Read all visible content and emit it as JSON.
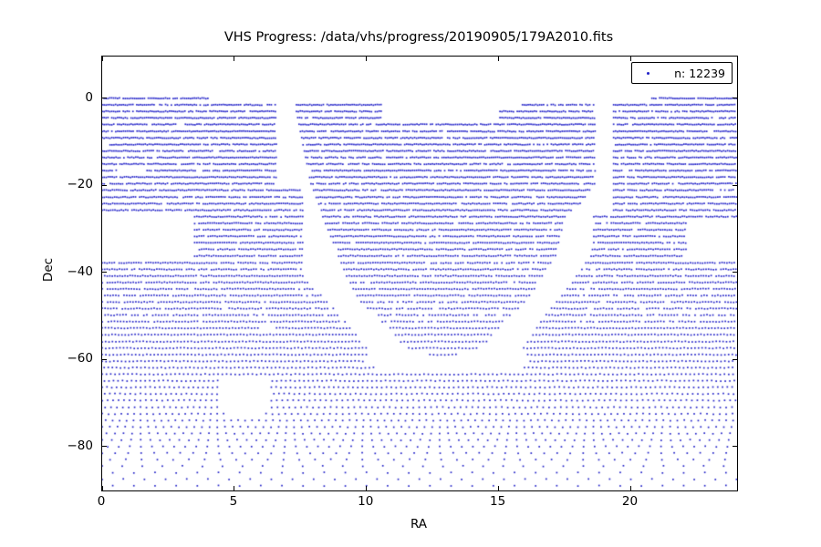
{
  "title": "VHS Progress: /data/vhs/progress/20190905/179A2010.fits",
  "legend": {
    "label": "n: 12239",
    "count": 12239
  },
  "axes": {
    "xlabel": "RA",
    "ylabel": "Dec",
    "xticks": [
      {
        "value": 0,
        "label": "0"
      },
      {
        "value": 5,
        "label": "5"
      },
      {
        "value": 10,
        "label": "10"
      },
      {
        "value": 15,
        "label": "15"
      },
      {
        "value": 20,
        "label": "20"
      }
    ],
    "yticks": [
      {
        "value": 0,
        "label": "0"
      },
      {
        "value": -20,
        "label": "−20"
      },
      {
        "value": -40,
        "label": "−40"
      },
      {
        "value": -60,
        "label": "−60"
      },
      {
        "value": -80,
        "label": "−80"
      }
    ]
  },
  "colors": {
    "point": "#2222c8",
    "frame": "#000000",
    "background": "#ffffff"
  },
  "chart_data": {
    "type": "scatter",
    "title": "VHS Progress: /data/vhs/progress/20190905/179A2010.fits",
    "xlabel": "RA",
    "ylabel": "Dec",
    "xlim": [
      0,
      24.02
    ],
    "ylim": [
      -90.1,
      9.6
    ],
    "grid": false,
    "legend_position": "upper right",
    "legend_entries": [
      "n: 12239"
    ],
    "n_points": 12239,
    "marker": "point",
    "point_color": "#2222c8",
    "row_spacing_deg": 1.51,
    "ra_step_base": 0.0727,
    "ra_step_max": 0.8,
    "stagger_from_row": 40,
    "rows": [
      {
        "dec": 0.0,
        "ra_segments": [
          [
            0,
            4.05
          ],
          [
            20.8,
            24
          ]
        ]
      },
      {
        "dec": -1.5,
        "ra_segments": [
          [
            0,
            6.6
          ],
          [
            7.35,
            10.6
          ],
          [
            15.9,
            18.65
          ],
          [
            19.35,
            24
          ]
        ]
      },
      {
        "dec": -3.0,
        "ra_segments": [
          [
            0,
            6.6
          ],
          [
            7.35,
            10.6
          ],
          [
            15.05,
            18.65
          ],
          [
            19.35,
            24
          ]
        ]
      },
      {
        "dec": -4.5,
        "ra_segments": [
          [
            0,
            6.6
          ],
          [
            7.4,
            10.6
          ],
          [
            15.05,
            18.65
          ],
          [
            19.35,
            24
          ]
        ]
      },
      {
        "dec": -6.0,
        "ra_segments": [
          [
            0,
            2.85
          ],
          [
            3.15,
            6.6
          ],
          [
            7.45,
            18.65
          ],
          [
            19.35,
            24
          ]
        ]
      },
      {
        "dec": -7.6,
        "ra_segments": [
          [
            0,
            6.6
          ],
          [
            7.5,
            18.65
          ],
          [
            19.35,
            24
          ]
        ]
      },
      {
        "dec": -9.1,
        "ra_segments": [
          [
            0,
            6.6
          ],
          [
            7.55,
            18.65
          ],
          [
            19.35,
            24
          ]
        ]
      },
      {
        "dec": -10.6,
        "ra_segments": [
          [
            0.3,
            6.6
          ],
          [
            7.6,
            18.65
          ],
          [
            19.35,
            24
          ]
        ]
      },
      {
        "dec": -12.1,
        "ra_segments": [
          [
            0,
            6.6
          ],
          [
            7.65,
            18.65
          ],
          [
            19.35,
            24
          ]
        ]
      },
      {
        "dec": -13.6,
        "ra_segments": [
          [
            0,
            6.6
          ],
          [
            7.7,
            18.65
          ],
          [
            19.35,
            24
          ]
        ]
      },
      {
        "dec": -15.1,
        "ra_segments": [
          [
            0,
            6.6
          ],
          [
            7.75,
            18.65
          ],
          [
            19.35,
            24
          ]
        ]
      },
      {
        "dec": -16.6,
        "ra_segments": [
          [
            0,
            0.6
          ],
          [
            1.7,
            6.6
          ],
          [
            7.8,
            18.65
          ],
          [
            19.35,
            24
          ]
        ]
      },
      {
        "dec": -18.1,
        "ra_segments": [
          [
            0,
            6.6
          ],
          [
            7.85,
            18.65
          ],
          [
            19.35,
            24
          ]
        ]
      },
      {
        "dec": -19.6,
        "ra_segments": [
          [
            0,
            6.6
          ],
          [
            7.9,
            18.65
          ],
          [
            19.35,
            24
          ]
        ]
      },
      {
        "dec": -21.1,
        "ra_segments": [
          [
            0,
            7.6
          ],
          [
            8.0,
            18.5
          ],
          [
            19.35,
            24
          ]
        ]
      },
      {
        "dec": -22.7,
        "ra_segments": [
          [
            0,
            7.6
          ],
          [
            8.1,
            18.3
          ],
          [
            19.35,
            24
          ]
        ]
      },
      {
        "dec": -24.2,
        "ra_segments": [
          [
            0,
            7.6
          ],
          [
            8.2,
            18.1
          ],
          [
            19.35,
            24
          ]
        ]
      },
      {
        "dec": -25.7,
        "ra_segments": [
          [
            0,
            7.6
          ],
          [
            8.3,
            17.8
          ],
          [
            19.35,
            24
          ]
        ]
      },
      {
        "dec": -27.2,
        "ra_segments": [
          [
            3.5,
            7.6
          ],
          [
            8.35,
            17.55
          ],
          [
            18.6,
            24
          ]
        ]
      },
      {
        "dec": -28.7,
        "ra_segments": [
          [
            3.5,
            7.6
          ],
          [
            8.45,
            17.45
          ],
          [
            18.6,
            22.1
          ]
        ]
      },
      {
        "dec": -30.2,
        "ra_segments": [
          [
            3.5,
            7.6
          ],
          [
            8.55,
            17.4
          ],
          [
            18.6,
            22.1
          ]
        ]
      },
      {
        "dec": -31.7,
        "ra_segments": [
          [
            3.5,
            7.6
          ],
          [
            8.65,
            17.35
          ],
          [
            18.6,
            22.1
          ]
        ]
      },
      {
        "dec": -33.2,
        "ra_segments": [
          [
            3.5,
            7.6
          ],
          [
            8.75,
            17.3
          ],
          [
            18.6,
            22.1
          ]
        ]
      },
      {
        "dec": -34.7,
        "ra_segments": [
          [
            3.5,
            7.6
          ],
          [
            8.85,
            17.2
          ],
          [
            18.55,
            22.1
          ]
        ]
      },
      {
        "dec": -36.2,
        "ra_segments": [
          [
            3.5,
            7.6
          ],
          [
            8.95,
            17.15
          ],
          [
            18.5,
            22.1
          ]
        ]
      },
      {
        "dec": -37.8,
        "ra_segments": [
          [
            0,
            7.6
          ],
          [
            9.05,
            17.0
          ],
          [
            18.3,
            24
          ]
        ]
      },
      {
        "dec": -39.3,
        "ra_segments": [
          [
            0,
            7.6
          ],
          [
            9.15,
            16.85
          ],
          [
            18.15,
            24
          ]
        ]
      },
      {
        "dec": -40.8,
        "ra_segments": [
          [
            0,
            7.7
          ],
          [
            9.25,
            16.7
          ],
          [
            17.95,
            24
          ]
        ]
      },
      {
        "dec": -42.3,
        "ra_segments": [
          [
            0,
            7.8
          ],
          [
            9.4,
            16.55
          ],
          [
            17.8,
            24
          ]
        ]
      },
      {
        "dec": -43.8,
        "ra_segments": [
          [
            0,
            8.0
          ],
          [
            9.5,
            16.4
          ],
          [
            17.6,
            24
          ]
        ]
      },
      {
        "dec": -45.3,
        "ra_segments": [
          [
            0,
            8.3
          ],
          [
            9.65,
            16.2
          ],
          [
            17.4,
            24
          ]
        ]
      },
      {
        "dec": -46.8,
        "ra_segments": [
          [
            0,
            8.6
          ],
          [
            9.8,
            16.0
          ],
          [
            17.2,
            24
          ]
        ]
      },
      {
        "dec": -48.3,
        "ra_segments": [
          [
            0,
            8.8
          ],
          [
            10.05,
            15.75
          ],
          [
            17.0,
            24
          ]
        ]
      },
      {
        "dec": -49.8,
        "ra_segments": [
          [
            0,
            9.0
          ],
          [
            10.35,
            15.5
          ],
          [
            16.8,
            24
          ]
        ]
      },
      {
        "dec": -51.3,
        "ra_segments": [
          [
            0,
            9.2
          ],
          [
            10.6,
            15.25
          ],
          [
            16.6,
            24
          ]
        ]
      },
      {
        "dec": -52.8,
        "ra_segments": [
          [
            0,
            6.0
          ],
          [
            6.6,
            9.4
          ],
          [
            10.9,
            15.0
          ],
          [
            16.45,
            24
          ]
        ]
      },
      {
        "dec": -54.3,
        "ra_segments": [
          [
            0,
            9.6
          ],
          [
            11.1,
            14.8
          ],
          [
            16.3,
            24
          ]
        ]
      },
      {
        "dec": -55.9,
        "ra_segments": [
          [
            0,
            9.8
          ],
          [
            11.3,
            14.6
          ],
          [
            16.1,
            24
          ]
        ]
      },
      {
        "dec": -57.4,
        "ra_segments": [
          [
            0,
            10.0
          ],
          [
            11.6,
            14.2
          ],
          [
            15.95,
            24
          ]
        ]
      },
      {
        "dec": -58.9,
        "ra_segments": [
          [
            0,
            10.1
          ],
          [
            12.4,
            13.45
          ],
          [
            16.1,
            24
          ]
        ]
      },
      {
        "dec": -60.4,
        "ra_segments": [
          [
            0,
            9.9
          ],
          [
            16.2,
            24
          ]
        ]
      },
      {
        "dec": -61.9,
        "ra_segments": [
          [
            0,
            10.4
          ],
          [
            15.9,
            24
          ]
        ]
      },
      {
        "dec": -63.4,
        "ra_segments": [
          [
            0,
            24
          ]
        ]
      },
      {
        "dec": -64.9,
        "ra_segments": [
          [
            0,
            4.5
          ],
          [
            6.35,
            24
          ]
        ]
      },
      {
        "dec": -66.4,
        "ra_segments": [
          [
            0,
            4.4
          ],
          [
            6.4,
            24
          ]
        ]
      },
      {
        "dec": -67.9,
        "ra_segments": [
          [
            0,
            4.4
          ],
          [
            6.4,
            24
          ]
        ]
      },
      {
        "dec": -69.4,
        "ra_segments": [
          [
            0,
            4.5
          ],
          [
            6.4,
            24
          ]
        ]
      },
      {
        "dec": -71.0,
        "ra_segments": [
          [
            0,
            4.5
          ],
          [
            6.3,
            24
          ]
        ]
      },
      {
        "dec": -72.5,
        "ra_segments": [
          [
            0,
            4.6
          ],
          [
            6.2,
            24
          ]
        ]
      },
      {
        "dec": -74.0,
        "ra_segments": [
          [
            0,
            24
          ]
        ]
      },
      {
        "dec": -75.5,
        "ra_segments": [
          [
            0,
            24
          ]
        ]
      },
      {
        "dec": -77.0,
        "ra_segments": [
          [
            0,
            24
          ]
        ]
      },
      {
        "dec": -78.5,
        "ra_segments": [
          [
            0,
            24
          ]
        ]
      },
      {
        "dec": -80.0,
        "ra_segments": [
          [
            0,
            24
          ]
        ]
      },
      {
        "dec": -81.5,
        "ra_segments": [
          [
            0,
            24
          ]
        ]
      },
      {
        "dec": -83.0,
        "ra_segments": [
          [
            0,
            24
          ]
        ]
      },
      {
        "dec": -84.5,
        "ra_segments": [
          [
            0,
            24
          ]
        ]
      },
      {
        "dec": -86.0,
        "ra_segments": [
          [
            0,
            24
          ]
        ]
      },
      {
        "dec": -87.5,
        "ra_segments": [
          [
            0,
            24
          ]
        ]
      },
      {
        "dec": -89.0,
        "ra_segments": [
          [
            0,
            24
          ]
        ]
      }
    ]
  }
}
